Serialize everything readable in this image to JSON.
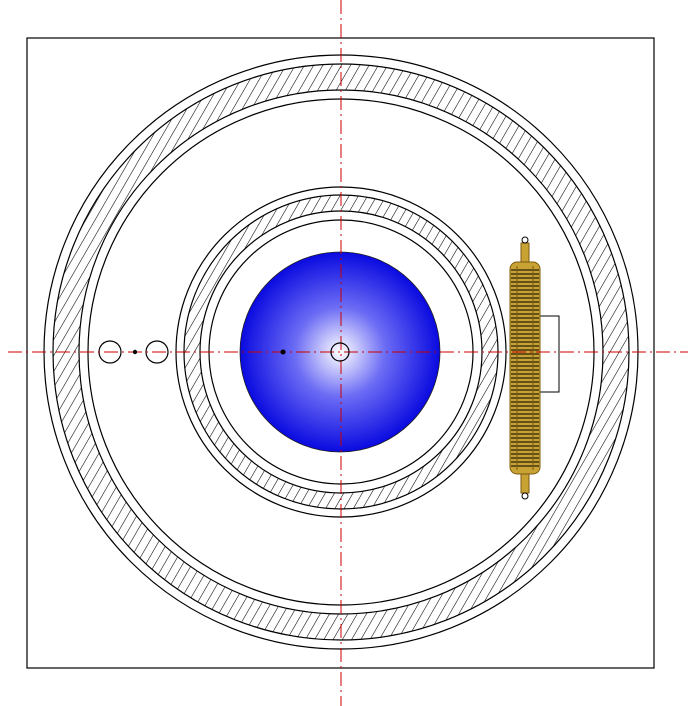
{
  "diagram": {
    "kind": "technical cross-section drawing (no printed text)",
    "colors": {
      "background": "#ffffff",
      "line": "#000000",
      "hatch": "#000000",
      "centerline": "#cc0000",
      "sphere_center": "#ffffff",
      "sphere_mid": "#6c6cf5",
      "sphere_edge": "#0a0ae0",
      "heater_gold": "#c8a232",
      "heater_gold_dark": "#7a5a10",
      "heater_panel": "#ffffff"
    },
    "components": {
      "enclosure": "square-frame",
      "outer_ring": "hatched-annulus",
      "inner_ring": "hatched-annulus",
      "central_element": "blue-gradient-sphere",
      "center_marker": "small-circle",
      "left_ports": [
        "port-circle",
        "port-circle"
      ],
      "heater": "finned-gold-heater",
      "centerlines": "dash-dot"
    }
  }
}
